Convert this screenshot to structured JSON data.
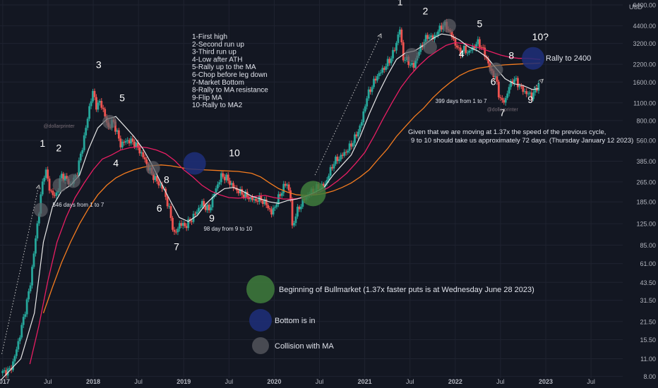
{
  "chart_data": {
    "type": "candlestick",
    "currency_label": "USD",
    "y_scale": "log",
    "ylim": [
      6.5,
      7000
    ],
    "y_ticks": [
      "6400.00",
      "4400.00",
      "3200.00",
      "2200.00",
      "1600.00",
      "1100.00",
      "800.00",
      "560.00",
      "385.00",
      "265.00",
      "185.00",
      "125.00",
      "85.00",
      "61.00",
      "43.50",
      "31.50",
      "21.50",
      "15.50",
      "11.00",
      "8.00"
    ],
    "x_ticks": [
      {
        "label": "2017",
        "t": 2017.0
      },
      {
        "label": "Jul",
        "t": 2017.5
      },
      {
        "label": "2018",
        "t": 2018.0
      },
      {
        "label": "Jul",
        "t": 2018.5
      },
      {
        "label": "2019",
        "t": 2019.0
      },
      {
        "label": "Jul",
        "t": 2019.5
      },
      {
        "label": "2020",
        "t": 2020.0
      },
      {
        "label": "Jul",
        "t": 2020.5
      },
      {
        "label": "2021",
        "t": 2021.0
      },
      {
        "label": "Jul",
        "t": 2021.5
      },
      {
        "label": "2022",
        "t": 2022.0
      },
      {
        "label": "Jul",
        "t": 2022.5
      },
      {
        "label": "2023",
        "t": 2023.0
      },
      {
        "label": "Jul",
        "t": 2023.5
      }
    ],
    "price_path": [
      [
        2016.98,
        8.5
      ],
      [
        2017.08,
        9.0
      ],
      [
        2017.12,
        10.5
      ],
      [
        2017.2,
        18
      ],
      [
        2017.3,
        40
      ],
      [
        2017.38,
        120
      ],
      [
        2017.44,
        260
      ],
      [
        2017.47,
        340
      ],
      [
        2017.52,
        230
      ],
      [
        2017.58,
        200
      ],
      [
        2017.65,
        300
      ],
      [
        2017.7,
        280
      ],
      [
        2017.75,
        250
      ],
      [
        2017.82,
        310
      ],
      [
        2017.88,
        500
      ],
      [
        2017.92,
        700
      ],
      [
        2017.96,
        1050
      ],
      [
        2018.0,
        1350
      ],
      [
        2018.04,
        1000
      ],
      [
        2018.08,
        1150
      ],
      [
        2018.12,
        900
      ],
      [
        2018.17,
        700
      ],
      [
        2018.22,
        800
      ],
      [
        2018.26,
        650
      ],
      [
        2018.3,
        520
      ],
      [
        2018.38,
        560
      ],
      [
        2018.45,
        540
      ],
      [
        2018.5,
        480
      ],
      [
        2018.55,
        420
      ],
      [
        2018.62,
        330
      ],
      [
        2018.7,
        270
      ],
      [
        2018.78,
        230
      ],
      [
        2018.84,
        160
      ],
      [
        2018.9,
        100
      ],
      [
        2018.95,
        125
      ],
      [
        2019.02,
        120
      ],
      [
        2019.1,
        140
      ],
      [
        2019.2,
        180
      ],
      [
        2019.28,
        160
      ],
      [
        2019.35,
        230
      ],
      [
        2019.42,
        300
      ],
      [
        2019.48,
        280
      ],
      [
        2019.55,
        240
      ],
      [
        2019.62,
        220
      ],
      [
        2019.7,
        205
      ],
      [
        2019.78,
        190
      ],
      [
        2019.85,
        195
      ],
      [
        2019.92,
        175
      ],
      [
        2019.97,
        150
      ],
      [
        2020.02,
        180
      ],
      [
        2020.1,
        240
      ],
      [
        2020.14,
        260
      ],
      [
        2020.18,
        200
      ],
      [
        2020.2,
        115
      ],
      [
        2020.24,
        150
      ],
      [
        2020.32,
        190
      ],
      [
        2020.4,
        220
      ],
      [
        2020.48,
        240
      ],
      [
        2020.56,
        250
      ],
      [
        2020.6,
        300
      ],
      [
        2020.66,
        380
      ],
      [
        2020.74,
        420
      ],
      [
        2020.82,
        480
      ],
      [
        2020.9,
        600
      ],
      [
        2020.96,
        750
      ],
      [
        2021.02,
        1200
      ],
      [
        2021.08,
        1500
      ],
      [
        2021.14,
        1800
      ],
      [
        2021.2,
        2000
      ],
      [
        2021.28,
        2400
      ],
      [
        2021.34,
        3000
      ],
      [
        2021.37,
        3800
      ],
      [
        2021.39,
        4200
      ],
      [
        2021.42,
        2500
      ],
      [
        2021.48,
        2300
      ],
      [
        2021.54,
        2100
      ],
      [
        2021.58,
        2600
      ],
      [
        2021.64,
        3200
      ],
      [
        2021.7,
        3700
      ],
      [
        2021.75,
        3500
      ],
      [
        2021.8,
        3900
      ],
      [
        2021.86,
        4500
      ],
      [
        2021.9,
        4400
      ],
      [
        2021.95,
        3800
      ],
      [
        2022.0,
        3200
      ],
      [
        2022.05,
        2700
      ],
      [
        2022.1,
        2900
      ],
      [
        2022.14,
        2700
      ],
      [
        2022.2,
        3000
      ],
      [
        2022.26,
        3300
      ],
      [
        2022.3,
        2900
      ],
      [
        2022.35,
        2400
      ],
      [
        2022.4,
        1900
      ],
      [
        2022.44,
        1800
      ],
      [
        2022.48,
        1300
      ],
      [
        2022.52,
        1100
      ],
      [
        2022.56,
        1200
      ],
      [
        2022.6,
        1500
      ],
      [
        2022.64,
        1700
      ],
      [
        2022.68,
        1600
      ],
      [
        2022.72,
        1450
      ],
      [
        2022.76,
        1350
      ],
      [
        2022.8,
        1300
      ],
      [
        2022.84,
        1250
      ],
      [
        2022.88,
        1350
      ],
      [
        2022.92,
        1550
      ],
      [
        2022.94,
        1600
      ]
    ],
    "ma_white": [
      [
        2016.98,
        7.5
      ],
      [
        2017.2,
        11
      ],
      [
        2017.35,
        25
      ],
      [
        2017.45,
        90
      ],
      [
        2017.55,
        170
      ],
      [
        2017.65,
        225
      ],
      [
        2017.75,
        250
      ],
      [
        2017.85,
        300
      ],
      [
        2017.95,
        480
      ],
      [
        2018.05,
        700
      ],
      [
        2018.15,
        820
      ],
      [
        2018.25,
        860
      ],
      [
        2018.35,
        720
      ],
      [
        2018.45,
        600
      ],
      [
        2018.55,
        480
      ],
      [
        2018.65,
        360
      ],
      [
        2018.75,
        260
      ],
      [
        2018.85,
        190
      ],
      [
        2018.95,
        140
      ],
      [
        2019.05,
        130
      ],
      [
        2019.15,
        145
      ],
      [
        2019.25,
        180
      ],
      [
        2019.35,
        210
      ],
      [
        2019.45,
        235
      ],
      [
        2019.55,
        240
      ],
      [
        2019.65,
        225
      ],
      [
        2019.75,
        205
      ],
      [
        2019.85,
        195
      ],
      [
        2019.95,
        185
      ],
      [
        2020.05,
        180
      ],
      [
        2020.15,
        190
      ],
      [
        2020.25,
        195
      ],
      [
        2020.35,
        205
      ],
      [
        2020.45,
        220
      ],
      [
        2020.55,
        240
      ],
      [
        2020.65,
        300
      ],
      [
        2020.75,
        360
      ],
      [
        2020.85,
        430
      ],
      [
        2020.95,
        600
      ],
      [
        2021.05,
        900
      ],
      [
        2021.15,
        1300
      ],
      [
        2021.25,
        1800
      ],
      [
        2021.35,
        2400
      ],
      [
        2021.45,
        2700
      ],
      [
        2021.55,
        2800
      ],
      [
        2021.65,
        3100
      ],
      [
        2021.75,
        3500
      ],
      [
        2021.85,
        3800
      ],
      [
        2021.95,
        3700
      ],
      [
        2022.05,
        3400
      ],
      [
        2022.15,
        3000
      ],
      [
        2022.25,
        2800
      ],
      [
        2022.35,
        2500
      ],
      [
        2022.45,
        2050
      ],
      [
        2022.55,
        1700
      ],
      [
        2022.65,
        1550
      ],
      [
        2022.75,
        1500
      ],
      [
        2022.85,
        1400
      ],
      [
        2022.92,
        1420
      ]
    ],
    "ma_red": [
      [
        2017.3,
        10
      ],
      [
        2017.4,
        20
      ],
      [
        2017.5,
        45
      ],
      [
        2017.6,
        90
      ],
      [
        2017.7,
        140
      ],
      [
        2017.8,
        200
      ],
      [
        2017.9,
        260
      ],
      [
        2018.0,
        330
      ],
      [
        2018.1,
        400
      ],
      [
        2018.2,
        430
      ],
      [
        2018.3,
        470
      ],
      [
        2018.4,
        490
      ],
      [
        2018.5,
        500
      ],
      [
        2018.6,
        490
      ],
      [
        2018.7,
        470
      ],
      [
        2018.8,
        440
      ],
      [
        2018.9,
        390
      ],
      [
        2019.0,
        330
      ],
      [
        2019.1,
        290
      ],
      [
        2019.2,
        250
      ],
      [
        2019.3,
        225
      ],
      [
        2019.4,
        210
      ],
      [
        2019.5,
        200
      ],
      [
        2019.6,
        198
      ],
      [
        2019.7,
        200
      ],
      [
        2019.8,
        205
      ],
      [
        2019.9,
        208
      ],
      [
        2020.0,
        200
      ],
      [
        2020.1,
        195
      ],
      [
        2020.2,
        195
      ],
      [
        2020.3,
        198
      ],
      [
        2020.4,
        210
      ],
      [
        2020.5,
        220
      ],
      [
        2020.6,
        240
      ],
      [
        2020.7,
        270
      ],
      [
        2020.8,
        310
      ],
      [
        2020.9,
        370
      ],
      [
        2021.0,
        450
      ],
      [
        2021.1,
        600
      ],
      [
        2021.2,
        820
      ],
      [
        2021.3,
        1100
      ],
      [
        2021.4,
        1450
      ],
      [
        2021.5,
        1800
      ],
      [
        2021.6,
        2150
      ],
      [
        2021.7,
        2500
      ],
      [
        2021.8,
        2800
      ],
      [
        2021.9,
        3100
      ],
      [
        2022.0,
        3250
      ],
      [
        2022.1,
        3200
      ],
      [
        2022.2,
        3050
      ],
      [
        2022.3,
        2900
      ],
      [
        2022.4,
        2750
      ],
      [
        2022.5,
        2600
      ],
      [
        2022.6,
        2500
      ],
      [
        2022.7,
        2450
      ],
      [
        2022.8,
        2450
      ],
      [
        2022.94,
        2400
      ]
    ],
    "ma_orange": [
      [
        2017.45,
        25
      ],
      [
        2017.55,
        40
      ],
      [
        2017.65,
        62
      ],
      [
        2017.75,
        90
      ],
      [
        2017.85,
        125
      ],
      [
        2017.95,
        165
      ],
      [
        2018.05,
        210
      ],
      [
        2018.15,
        250
      ],
      [
        2018.25,
        285
      ],
      [
        2018.35,
        310
      ],
      [
        2018.45,
        330
      ],
      [
        2018.55,
        345
      ],
      [
        2018.65,
        355
      ],
      [
        2018.75,
        360
      ],
      [
        2018.85,
        355
      ],
      [
        2018.95,
        345
      ],
      [
        2019.05,
        335
      ],
      [
        2019.2,
        330
      ],
      [
        2019.4,
        325
      ],
      [
        2019.6,
        320
      ],
      [
        2019.75,
        310
      ],
      [
        2019.85,
        290
      ],
      [
        2019.95,
        260
      ],
      [
        2020.05,
        235
      ],
      [
        2020.15,
        220
      ],
      [
        2020.25,
        210
      ],
      [
        2020.35,
        208
      ],
      [
        2020.45,
        210
      ],
      [
        2020.55,
        215
      ],
      [
        2020.65,
        225
      ],
      [
        2020.75,
        240
      ],
      [
        2020.85,
        260
      ],
      [
        2020.95,
        290
      ],
      [
        2021.05,
        330
      ],
      [
        2021.15,
        400
      ],
      [
        2021.25,
        480
      ],
      [
        2021.35,
        600
      ],
      [
        2021.45,
        720
      ],
      [
        2021.55,
        860
      ],
      [
        2021.65,
        1000
      ],
      [
        2021.75,
        1200
      ],
      [
        2021.85,
        1400
      ],
      [
        2021.95,
        1600
      ],
      [
        2022.05,
        1800
      ],
      [
        2022.15,
        1950
      ],
      [
        2022.25,
        2050
      ],
      [
        2022.35,
        2100
      ],
      [
        2022.45,
        2150
      ],
      [
        2022.55,
        2180
      ],
      [
        2022.65,
        2200
      ],
      [
        2022.75,
        2220
      ],
      [
        2022.94,
        2250
      ]
    ],
    "cycle_labels": [
      {
        "text": "1",
        "t": 2017.44,
        "p": 500
      },
      {
        "text": "2",
        "t": 2017.62,
        "p": 460
      },
      {
        "text": "3",
        "t": 2018.06,
        "p": 2050
      },
      {
        "text": "4",
        "t": 2018.25,
        "p": 350
      },
      {
        "text": "5",
        "t": 2018.32,
        "p": 1130
      },
      {
        "text": "6",
        "t": 2018.73,
        "p": 155
      },
      {
        "text": "7",
        "t": 2018.92,
        "p": 78
      },
      {
        "text": "8",
        "t": 2018.81,
        "p": 260
      },
      {
        "text": "9",
        "t": 2019.31,
        "p": 130
      },
      {
        "text": "10",
        "t": 2019.56,
        "p": 420
      },
      {
        "text": "1",
        "t": 2021.39,
        "p": 6350
      },
      {
        "text": "2",
        "t": 2021.67,
        "p": 5400
      },
      {
        "text": "3",
        "t": 2021.89,
        "p": 7500
      },
      {
        "text": "4",
        "t": 2022.07,
        "p": 2500
      },
      {
        "text": "5",
        "t": 2022.27,
        "p": 4300
      },
      {
        "text": "6",
        "t": 2022.42,
        "p": 1520
      },
      {
        "text": "7",
        "t": 2022.52,
        "p": 870
      },
      {
        "text": "8",
        "t": 2022.62,
        "p": 2420
      },
      {
        "text": "9",
        "t": 2022.83,
        "p": 1100
      },
      {
        "text": "10?",
        "t": 2022.94,
        "p": 3400
      }
    ],
    "annotations": [
      {
        "text": "546 days from 1 to 7",
        "t": 2017.55,
        "p": 170,
        "size": 8
      },
      {
        "text": "98 day from 9 to 10",
        "t": 2019.22,
        "p": 110,
        "size": 8
      },
      {
        "text": "399 days from 1 to 7",
        "t": 2021.78,
        "p": 1100,
        "size": 8
      },
      {
        "text": "Rally to 2400",
        "t": 2023.0,
        "p": 2350,
        "size": 11
      },
      {
        "text": "@dollarprinter",
        "t": 2017.45,
        "p": 705,
        "size": 7,
        "muted": true
      },
      {
        "text": "@dollarprinter",
        "t": 2022.35,
        "p": 950,
        "size": 7,
        "muted": true
      }
    ],
    "notes": [
      "Given that we are moving at 1.37x the speed of the previous cycle,",
      "9 to 10 should take us approximately 72 days. (Thursday January 12 2023)"
    ],
    "steps_list": [
      "1-First high",
      "2-Second run up",
      "3-Third run up",
      "4-Low after ATH",
      "5-Rally up to the MA",
      "6-Chop before leg down",
      "7-Market Bottom",
      "8-Rally to MA resistance",
      "9-Flip MA",
      "10-Rally to MA2"
    ],
    "markers": [
      {
        "kind": "green",
        "t": 2020.43,
        "p": 215
      },
      {
        "kind": "blue",
        "t": 2019.12,
        "p": 370
      },
      {
        "kind": "blue",
        "t": 2022.86,
        "p": 2450
      },
      {
        "kind": "gray",
        "t": 2017.42,
        "p": 160
      },
      {
        "kind": "gray",
        "t": 2017.63,
        "p": 250
      },
      {
        "kind": "gray",
        "t": 2017.78,
        "p": 270
      },
      {
        "kind": "gray",
        "t": 2018.18,
        "p": 780
      },
      {
        "kind": "gray",
        "t": 2018.66,
        "p": 340
      },
      {
        "kind": "gray",
        "t": 2021.52,
        "p": 2600
      },
      {
        "kind": "gray",
        "t": 2021.72,
        "p": 3000
      },
      {
        "kind": "gray",
        "t": 2021.93,
        "p": 4400
      },
      {
        "kind": "gray",
        "t": 2022.45,
        "p": 2000
      }
    ],
    "legend": [
      {
        "kind": "green",
        "label": "Beginning of Bullmarket (1.37x faster puts is at Wednesday June 28 2023)"
      },
      {
        "kind": "blue",
        "label": "Bottom is in"
      },
      {
        "kind": "gray",
        "label": "Collision with MA"
      }
    ],
    "colors": {
      "background": "#131722",
      "grid": "#1f2330",
      "axis_text": "#b2b5be",
      "up": "#26a69a",
      "down": "#ef5350",
      "ma_white": "#e8e8e8",
      "ma_red": "#e91e63",
      "ma_orange": "#f57c1f",
      "green": "#3f7d3c",
      "blue": "#1f2f7a",
      "gray": "#5f6166"
    }
  }
}
